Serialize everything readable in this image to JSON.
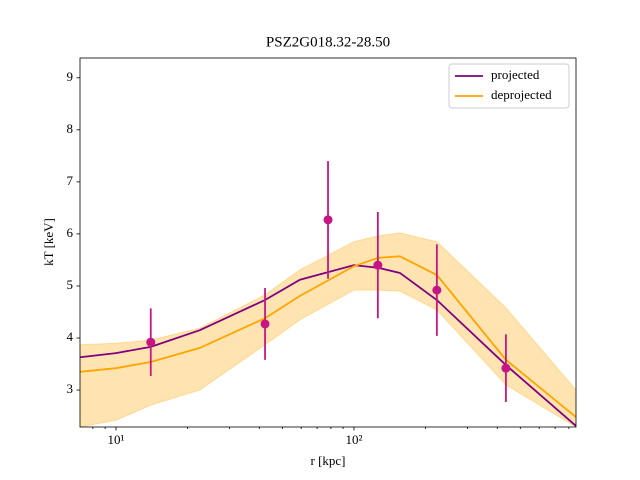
{
  "chart_data": {
    "type": "line",
    "title": "PSZ2G018.32-28.50",
    "xlabel": "r [kpc]",
    "ylabel": "kT [keV]",
    "xscale": "log",
    "xlim": [
      7.06,
      857
    ],
    "ylim": [
      2.29,
      9.38
    ],
    "xticks": [
      {
        "value": 10,
        "label": "10¹"
      },
      {
        "value": 100,
        "label": "10²"
      }
    ],
    "xminorticks": [
      8,
      9,
      20,
      30,
      40,
      50,
      60,
      70,
      80,
      90,
      200,
      300,
      400,
      500,
      600,
      700,
      800
    ],
    "yticks": [
      3,
      4,
      5,
      6,
      7,
      8,
      9
    ],
    "legend": "upper right",
    "x": [
      7.06,
      10,
      14,
      22.5,
      42.3,
      59.3,
      100,
      126,
      156,
      223,
      435,
      857
    ],
    "series": [
      {
        "name": "projected",
        "color": "#800080",
        "values": [
          3.63,
          3.71,
          3.83,
          4.15,
          4.73,
          5.12,
          5.4,
          5.35,
          5.25,
          4.73,
          3.48,
          2.31
        ]
      },
      {
        "name": "deprojected",
        "color": "#ffa500",
        "values": [
          3.35,
          3.42,
          3.54,
          3.81,
          4.38,
          4.81,
          5.38,
          5.54,
          5.57,
          5.21,
          3.58,
          2.48
        ],
        "band_low": [
          2.29,
          2.42,
          2.71,
          3.0,
          3.87,
          4.35,
          4.92,
          4.92,
          4.9,
          4.54,
          3.1,
          2.29
        ],
        "band_high": [
          3.87,
          3.9,
          3.96,
          4.19,
          4.83,
          5.31,
          5.85,
          5.96,
          6.02,
          5.85,
          4.58,
          3.0
        ]
      }
    ],
    "points": {
      "color": "#c71585",
      "x": [
        14.0,
        42.3,
        77.8,
        126,
        223,
        435
      ],
      "values": [
        3.92,
        4.27,
        6.27,
        5.4,
        4.92,
        3.42
      ],
      "errors": [
        0.65,
        0.69,
        1.13,
        1.02,
        0.88,
        0.65
      ]
    }
  }
}
